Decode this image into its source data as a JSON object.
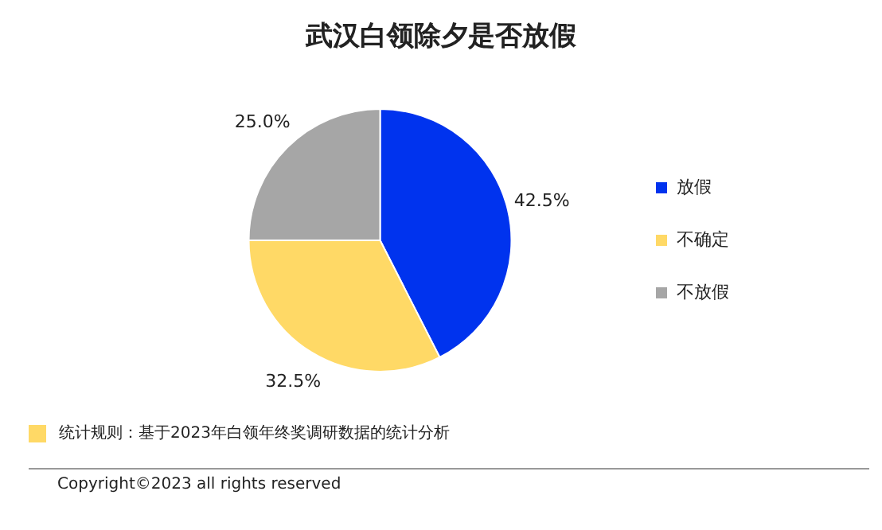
{
  "chart_data": {
    "type": "pie",
    "title": "武汉白领除夕是否放假",
    "categories": [
      "放假",
      "不确定",
      "不放假"
    ],
    "values": [
      42.5,
      32.5,
      25.0
    ],
    "value_labels": [
      "42.5%",
      "32.5%",
      "25.0%"
    ],
    "colors": [
      "#0033ee",
      "#ffd966",
      "#a6a6a6"
    ],
    "legend": "right",
    "annotations": [
      "统计规则：基于2023年白领年终奖调研数据的统计分析",
      "Copyright©2023 all rights reserved"
    ]
  }
}
